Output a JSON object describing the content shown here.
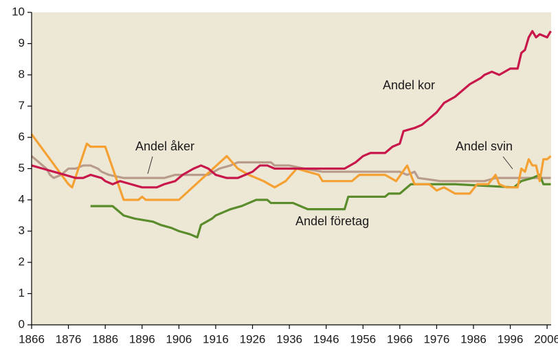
{
  "chart_data": {
    "type": "line",
    "xlim": [
      1866,
      2007
    ],
    "ylim": [
      0,
      10
    ],
    "xticks": [
      1866,
      1876,
      1886,
      1896,
      1906,
      1916,
      1926,
      1936,
      1946,
      1956,
      1966,
      1976,
      1986,
      1996,
      2006
    ],
    "yticks": [
      0,
      1,
      2,
      3,
      4,
      5,
      6,
      7,
      8,
      9,
      10
    ],
    "grid": false,
    "series": [
      {
        "name": "Andel kor",
        "color": "#c8174b",
        "x": [
          1866,
          1869,
          1872,
          1875,
          1878,
          1880,
          1882,
          1885,
          1886,
          1888,
          1890,
          1893,
          1896,
          1900,
          1902,
          1905,
          1907,
          1910,
          1912,
          1914,
          1916,
          1919,
          1922,
          1924,
          1926,
          1928,
          1930,
          1932,
          1936,
          1951,
          1954,
          1956,
          1958,
          1962,
          1964,
          1966,
          1967,
          1970,
          1972,
          1974,
          1976,
          1978,
          1981,
          1983,
          1985,
          1988,
          1989,
          1991,
          1993,
          1996,
          1998,
          1999,
          2000,
          2001,
          2002,
          2003,
          2004,
          2006,
          2007
        ],
        "values": [
          5.1,
          5.0,
          4.9,
          4.8,
          4.7,
          4.7,
          4.8,
          4.7,
          4.6,
          4.5,
          4.6,
          4.5,
          4.4,
          4.4,
          4.5,
          4.6,
          4.8,
          5.0,
          5.1,
          5.0,
          4.8,
          4.7,
          4.7,
          4.8,
          4.9,
          5.1,
          5.1,
          5.0,
          5.0,
          5.0,
          5.2,
          5.4,
          5.5,
          5.5,
          5.7,
          5.8,
          6.2,
          6.3,
          6.4,
          6.6,
          6.8,
          7.1,
          7.3,
          7.5,
          7.7,
          7.9,
          8.0,
          8.1,
          8.0,
          8.2,
          8.2,
          8.7,
          8.8,
          9.2,
          9.4,
          9.2,
          9.3,
          9.2,
          9.4
        ]
      },
      {
        "name": "Andel åker",
        "color": "#b99b8b",
        "x": [
          1866,
          1868,
          1870,
          1871,
          1872,
          1874,
          1876,
          1878,
          1880,
          1882,
          1884,
          1885,
          1887,
          1891,
          1902,
          1905,
          1914,
          1917,
          1920,
          1922,
          1931,
          1932,
          1936,
          1940,
          1945,
          1966,
          1968,
          1970,
          1971,
          1977,
          1989,
          1992,
          2007
        ],
        "values": [
          5.4,
          5.2,
          5.0,
          4.8,
          4.7,
          4.8,
          5.0,
          5.0,
          5.1,
          5.1,
          5.0,
          4.9,
          4.8,
          4.7,
          4.7,
          4.8,
          4.8,
          5.0,
          5.1,
          5.2,
          5.2,
          5.1,
          5.1,
          5.0,
          4.9,
          4.9,
          4.8,
          4.9,
          4.7,
          4.6,
          4.6,
          4.7,
          4.7
        ]
      },
      {
        "name": "Andel svin",
        "color": "#f5a033",
        "x": [
          1866,
          1876,
          1877,
          1881,
          1882,
          1886,
          1891,
          1895,
          1896,
          1897,
          1906,
          1919,
          1922,
          1925,
          1929,
          1932,
          1935,
          1938,
          1941,
          1944,
          1945,
          1953,
          1955,
          1962,
          1965,
          1968,
          1970,
          1974,
          1976,
          1978,
          1981,
          1985,
          1987,
          1990,
          1992,
          1993,
          1995,
          1998,
          1999,
          2000,
          2001,
          2002,
          2003,
          2004,
          2005,
          2006,
          2007
        ],
        "values": [
          6.1,
          4.5,
          4.4,
          5.8,
          5.7,
          5.7,
          4.0,
          4.0,
          4.1,
          4.0,
          4.0,
          5.4,
          5.0,
          4.8,
          4.6,
          4.4,
          4.6,
          5.0,
          4.9,
          4.8,
          4.6,
          4.6,
          4.8,
          4.8,
          4.6,
          5.1,
          4.5,
          4.5,
          4.3,
          4.4,
          4.2,
          4.2,
          4.5,
          4.5,
          4.8,
          4.5,
          4.4,
          4.4,
          5.0,
          4.9,
          5.3,
          5.1,
          5.1,
          4.6,
          5.3,
          5.3,
          5.4
        ]
      },
      {
        "name": "Andel företag",
        "color": "#5a8c2c",
        "x": [
          1882,
          1888,
          1891,
          1894,
          1899,
          1901,
          1904,
          1906,
          1909,
          1911,
          1912,
          1915,
          1916,
          1918,
          1920,
          1923,
          1925,
          1927,
          1930,
          1931,
          1937,
          1939,
          1941,
          1951,
          1952,
          1962,
          1963,
          1966,
          1969,
          1981,
          1997,
          1999,
          2002,
          2004,
          2005,
          2007
        ],
        "values": [
          3.8,
          3.8,
          3.5,
          3.4,
          3.3,
          3.2,
          3.1,
          3.0,
          2.9,
          2.8,
          3.2,
          3.4,
          3.5,
          3.6,
          3.7,
          3.8,
          3.9,
          4.0,
          4.0,
          3.9,
          3.9,
          3.8,
          3.7,
          3.7,
          4.1,
          4.1,
          4.2,
          4.2,
          4.5,
          4.5,
          4.4,
          4.6,
          4.7,
          4.8,
          4.5,
          4.5
        ]
      }
    ]
  }
}
